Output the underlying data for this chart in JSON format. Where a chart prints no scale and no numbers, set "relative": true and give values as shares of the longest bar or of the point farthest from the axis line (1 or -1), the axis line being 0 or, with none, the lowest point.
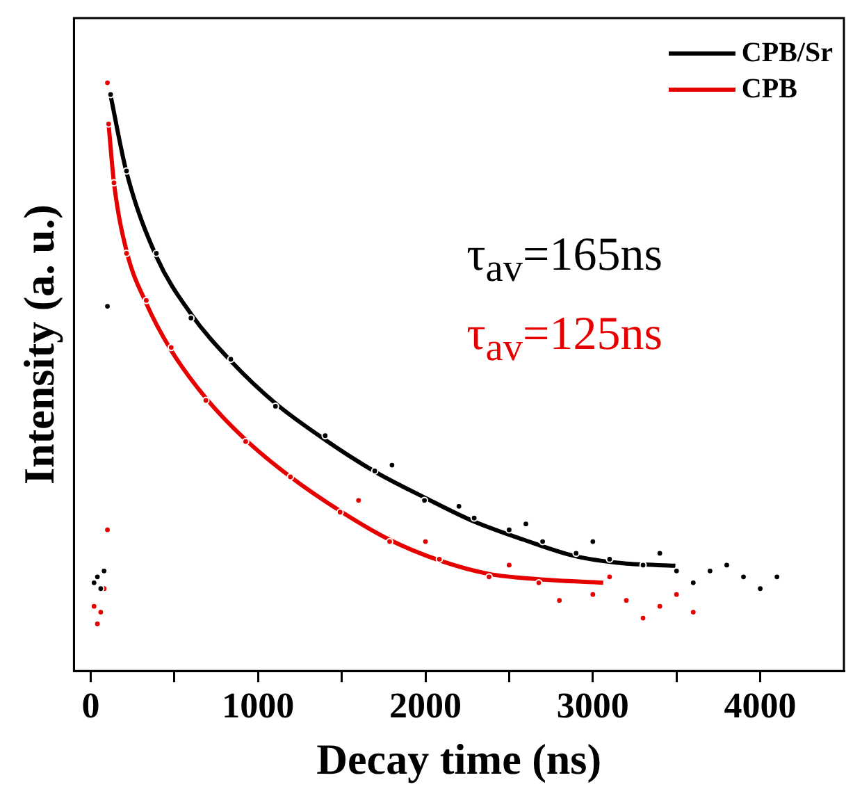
{
  "chart_data": {
    "type": "scatter",
    "xlabel": "Decay time (ns)",
    "ylabel": "Intensity (a. u.)",
    "relative": true,
    "xlim": [
      -100,
      4500
    ],
    "xticks": [
      0,
      {
        "value": 500,
        "label": null
      },
      1000,
      {
        "value": 1500,
        "label": null
      },
      2000,
      {
        "value": 2500,
        "label": null
      },
      3000,
      {
        "value": 3500,
        "label": null
      },
      4000
    ],
    "grid": false,
    "legend": "top right",
    "annotations": [
      "τ$_{av}$=165ns",
      "τ$_{av}$=125ns"
    ],
    "series": [
      {
        "name": "CPB/Sr",
        "type": "line",
        "marker": "none",
        "color": "#000000",
        "x": [
          119,
          214,
          392,
          599,
          837,
          1104,
          1401,
          1697,
          1994,
          2291,
          2588,
          2884,
          3181,
          3493
        ],
        "values": [
          0.978,
          0.848,
          0.705,
          0.607,
          0.527,
          0.455,
          0.393,
          0.339,
          0.295,
          0.254,
          0.223,
          0.196,
          0.183,
          0.179
        ]
      },
      {
        "name": "CPB",
        "type": "line",
        "marker": "none",
        "color": "#e60000",
        "x": [
          107,
          139,
          214,
          332,
          481,
          688,
          926,
          1193,
          1490,
          1786,
          2083,
          2380,
          2677,
          3062
        ],
        "values": [
          0.929,
          0.83,
          0.714,
          0.625,
          0.545,
          0.464,
          0.393,
          0.33,
          0.272,
          0.223,
          0.188,
          0.165,
          0.156,
          0.15
        ]
      },
      {
        "type": "scatter",
        "marker": "circle",
        "color": "#000000",
        "x": [
          20,
          40,
          60,
          80,
          100,
          119,
          214,
          392,
          599,
          837,
          1104,
          1401,
          1697,
          1800,
          1994,
          2200,
          2291,
          2500,
          2600,
          2700,
          2900,
          3000,
          3100,
          3300,
          3400,
          3500,
          3600,
          3700,
          3800,
          3900,
          4000,
          4100
        ],
        "values": [
          0.15,
          0.16,
          0.14,
          0.17,
          0.62,
          0.98,
          0.85,
          0.71,
          0.6,
          0.53,
          0.45,
          0.4,
          0.34,
          0.35,
          0.29,
          0.28,
          0.26,
          0.24,
          0.25,
          0.22,
          0.2,
          0.22,
          0.19,
          0.18,
          0.2,
          0.17,
          0.15,
          0.17,
          0.18,
          0.16,
          0.14,
          0.16
        ]
      },
      {
        "type": "scatter",
        "marker": "circle",
        "color": "#e60000",
        "x": [
          20,
          40,
          60,
          80,
          100,
          100,
          107,
          139,
          214,
          332,
          481,
          688,
          926,
          1193,
          1490,
          1600,
          1786,
          2000,
          2083,
          2380,
          2500,
          2677,
          2800,
          3000,
          3100,
          3200,
          3300,
          3400,
          3500,
          3600
        ],
        "values": [
          0.11,
          0.08,
          0.1,
          0.14,
          0.24,
          1.0,
          0.93,
          0.83,
          0.71,
          0.63,
          0.55,
          0.46,
          0.39,
          0.33,
          0.27,
          0.29,
          0.22,
          0.22,
          0.19,
          0.16,
          0.18,
          0.15,
          0.12,
          0.13,
          0.16,
          0.12,
          0.09,
          0.11,
          0.13,
          0.1
        ]
      }
    ]
  }
}
